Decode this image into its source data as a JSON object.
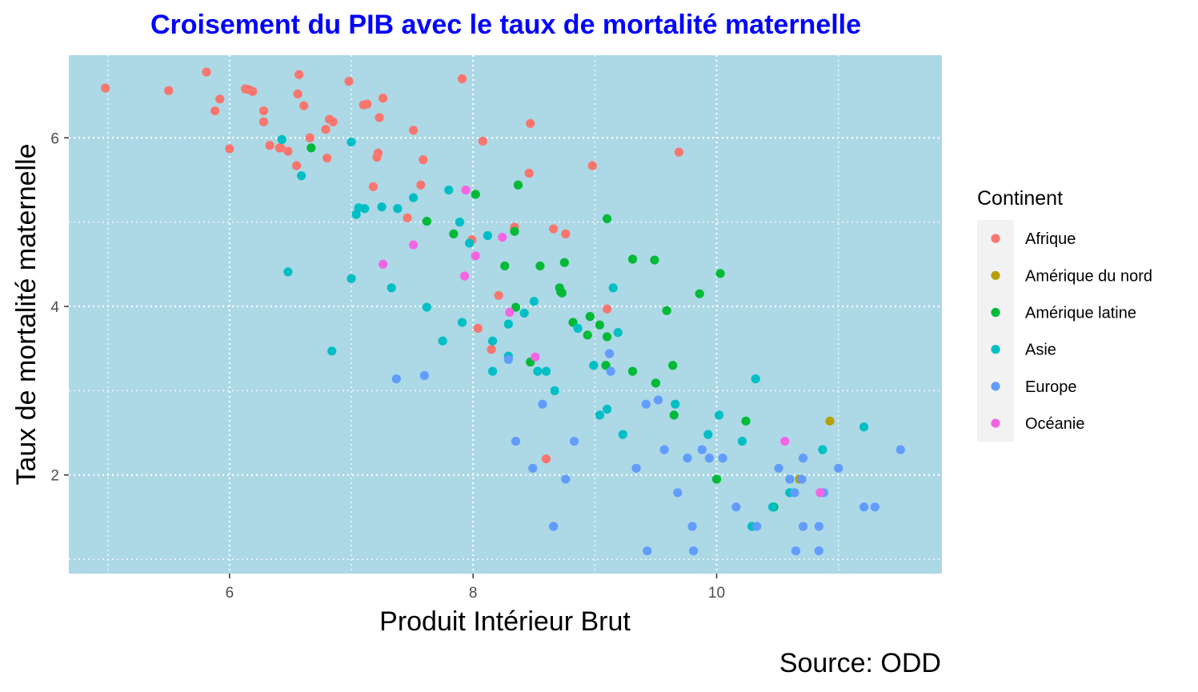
{
  "chart_data": {
    "type": "scatter",
    "title": "Croisement du PIB avec le taux de mortalité maternelle",
    "xlabel": "Produit Intérieur Brut",
    "ylabel": "Taux de mortalité maternelle",
    "caption": "Source: ODD",
    "xlim": [
      4.68,
      11.85
    ],
    "ylim": [
      0.83,
      6.98
    ],
    "xticks": [
      6,
      8,
      10
    ],
    "yticks": [
      2,
      4,
      6
    ],
    "xminor": [
      5,
      7,
      9,
      11
    ],
    "yminor": [
      1,
      3,
      5
    ],
    "grid": true,
    "legend_position": "right",
    "legend_title": "Continent",
    "colors": {
      "panel_bg": "#add8e6",
      "grid": "#ffffff",
      "title": "#0000ff",
      "legend_key_bg": "#f2f2f2"
    },
    "series": [
      {
        "name": "Afrique",
        "color": "#F8766D",
        "points": [
          [
            4.98,
            6.59
          ],
          [
            5.5,
            6.56
          ],
          [
            5.81,
            6.78
          ],
          [
            5.88,
            6.32
          ],
          [
            5.92,
            6.46
          ],
          [
            6.0,
            5.87
          ],
          [
            6.13,
            6.58
          ],
          [
            6.16,
            6.57
          ],
          [
            6.19,
            6.55
          ],
          [
            6.28,
            6.32
          ],
          [
            6.28,
            6.19
          ],
          [
            6.33,
            5.91
          ],
          [
            6.41,
            5.88
          ],
          [
            6.42,
            5.88
          ],
          [
            6.48,
            5.84
          ],
          [
            6.55,
            5.67
          ],
          [
            6.56,
            6.52
          ],
          [
            6.57,
            6.75
          ],
          [
            6.61,
            6.38
          ],
          [
            6.66,
            6.0
          ],
          [
            6.79,
            6.1
          ],
          [
            6.8,
            5.76
          ],
          [
            6.82,
            6.22
          ],
          [
            6.85,
            6.19
          ],
          [
            6.98,
            6.67
          ],
          [
            7.1,
            6.39
          ],
          [
            7.13,
            6.4
          ],
          [
            7.18,
            5.42
          ],
          [
            7.21,
            5.77
          ],
          [
            7.22,
            5.82
          ],
          [
            7.23,
            6.24
          ],
          [
            7.26,
            6.47
          ],
          [
            7.46,
            5.05
          ],
          [
            7.51,
            6.09
          ],
          [
            7.57,
            5.44
          ],
          [
            7.59,
            5.74
          ],
          [
            7.91,
            6.7
          ],
          [
            7.99,
            4.79
          ],
          [
            8.04,
            3.74
          ],
          [
            8.08,
            5.96
          ],
          [
            8.15,
            3.49
          ],
          [
            8.21,
            4.13
          ],
          [
            8.34,
            4.94
          ],
          [
            8.46,
            5.58
          ],
          [
            8.47,
            6.17
          ],
          [
            8.6,
            2.19
          ],
          [
            8.66,
            4.92
          ],
          [
            8.76,
            4.86
          ],
          [
            8.98,
            5.67
          ],
          [
            9.1,
            3.97
          ],
          [
            9.69,
            5.83
          ]
        ]
      },
      {
        "name": "Amérique du nord",
        "color": "#B79F00",
        "points": [
          [
            10.68,
            1.95
          ],
          [
            10.93,
            2.64
          ]
        ]
      },
      {
        "name": "Amérique latine",
        "color": "#00BA38",
        "points": [
          [
            6.67,
            5.88
          ],
          [
            7.62,
            5.01
          ],
          [
            7.84,
            4.86
          ],
          [
            8.02,
            5.33
          ],
          [
            8.26,
            4.48
          ],
          [
            8.34,
            4.89
          ],
          [
            8.35,
            3.99
          ],
          [
            8.37,
            5.44
          ],
          [
            8.47,
            3.34
          ],
          [
            8.55,
            4.48
          ],
          [
            8.71,
            4.22
          ],
          [
            8.72,
            4.17
          ],
          [
            8.73,
            4.16
          ],
          [
            8.75,
            4.52
          ],
          [
            8.82,
            3.81
          ],
          [
            8.94,
            3.66
          ],
          [
            8.96,
            3.88
          ],
          [
            9.04,
            3.78
          ],
          [
            9.09,
            3.3
          ],
          [
            9.1,
            3.64
          ],
          [
            9.1,
            5.04
          ],
          [
            9.31,
            4.56
          ],
          [
            9.31,
            3.23
          ],
          [
            9.49,
            4.55
          ],
          [
            9.5,
            3.09
          ],
          [
            9.59,
            3.95
          ],
          [
            9.64,
            3.3
          ],
          [
            9.65,
            2.71
          ],
          [
            9.86,
            4.15
          ],
          [
            10.0,
            1.95
          ],
          [
            10.03,
            4.39
          ],
          [
            10.24,
            2.64
          ],
          [
            10.47,
            1.62
          ]
        ]
      },
      {
        "name": "Asie",
        "color": "#00BFC4",
        "points": [
          [
            6.43,
            5.98
          ],
          [
            6.48,
            4.41
          ],
          [
            6.59,
            5.55
          ],
          [
            6.84,
            3.47
          ],
          [
            7.0,
            5.95
          ],
          [
            7.0,
            4.33
          ],
          [
            7.04,
            5.09
          ],
          [
            7.06,
            5.17
          ],
          [
            7.11,
            5.16
          ],
          [
            7.25,
            5.18
          ],
          [
            7.33,
            4.22
          ],
          [
            7.38,
            5.16
          ],
          [
            7.51,
            5.29
          ],
          [
            7.62,
            3.99
          ],
          [
            7.75,
            3.59
          ],
          [
            7.8,
            5.38
          ],
          [
            7.89,
            5.0
          ],
          [
            7.91,
            3.81
          ],
          [
            7.97,
            4.75
          ],
          [
            8.12,
            4.84
          ],
          [
            8.16,
            3.23
          ],
          [
            8.16,
            3.59
          ],
          [
            8.29,
            3.79
          ],
          [
            8.29,
            3.41
          ],
          [
            8.42,
            3.92
          ],
          [
            8.5,
            4.06
          ],
          [
            8.53,
            3.23
          ],
          [
            8.6,
            3.23
          ],
          [
            8.67,
            3.0
          ],
          [
            8.86,
            3.74
          ],
          [
            8.99,
            3.3
          ],
          [
            9.04,
            2.71
          ],
          [
            9.1,
            2.78
          ],
          [
            9.15,
            4.22
          ],
          [
            9.19,
            3.69
          ],
          [
            9.23,
            2.48
          ],
          [
            9.66,
            2.84
          ],
          [
            9.93,
            2.48
          ],
          [
            10.02,
            2.71
          ],
          [
            10.21,
            2.4
          ],
          [
            10.29,
            1.39
          ],
          [
            10.32,
            3.14
          ],
          [
            10.46,
            1.62
          ],
          [
            10.6,
            1.79
          ],
          [
            10.87,
            2.3
          ],
          [
            11.21,
            2.57
          ]
        ]
      },
      {
        "name": "Europe",
        "color": "#619CFF",
        "points": [
          [
            7.37,
            3.14
          ],
          [
            7.6,
            3.18
          ],
          [
            8.29,
            3.37
          ],
          [
            8.35,
            2.4
          ],
          [
            8.49,
            2.08
          ],
          [
            8.57,
            2.84
          ],
          [
            8.66,
            1.39
          ],
          [
            8.76,
            1.95
          ],
          [
            8.83,
            2.4
          ],
          [
            9.12,
            3.44
          ],
          [
            9.13,
            3.23
          ],
          [
            9.34,
            2.08
          ],
          [
            9.42,
            2.84
          ],
          [
            9.43,
            1.1
          ],
          [
            9.52,
            2.89
          ],
          [
            9.57,
            2.3
          ],
          [
            9.68,
            1.79
          ],
          [
            9.76,
            2.2
          ],
          [
            9.8,
            1.39
          ],
          [
            9.81,
            1.1
          ],
          [
            9.88,
            2.3
          ],
          [
            9.94,
            2.2
          ],
          [
            10.05,
            2.2
          ],
          [
            10.16,
            1.62
          ],
          [
            10.33,
            1.39
          ],
          [
            10.51,
            2.08
          ],
          [
            10.6,
            1.95
          ],
          [
            10.64,
            1.79
          ],
          [
            10.65,
            1.1
          ],
          [
            10.7,
            1.95
          ],
          [
            10.71,
            1.39
          ],
          [
            10.71,
            2.2
          ],
          [
            10.84,
            1.1
          ],
          [
            10.84,
            1.39
          ],
          [
            10.88,
            1.79
          ],
          [
            11.0,
            2.08
          ],
          [
            11.21,
            1.62
          ],
          [
            11.3,
            1.62
          ],
          [
            11.51,
            2.3
          ]
        ]
      },
      {
        "name": "Océanie",
        "color": "#F564E3",
        "points": [
          [
            7.26,
            4.5
          ],
          [
            7.51,
            4.73
          ],
          [
            7.93,
            4.36
          ],
          [
            7.94,
            5.38
          ],
          [
            8.02,
            4.6
          ],
          [
            8.24,
            4.82
          ],
          [
            8.3,
            3.93
          ],
          [
            8.51,
            3.4
          ],
          [
            10.56,
            2.4
          ],
          [
            10.85,
            1.79
          ]
        ]
      }
    ]
  }
}
